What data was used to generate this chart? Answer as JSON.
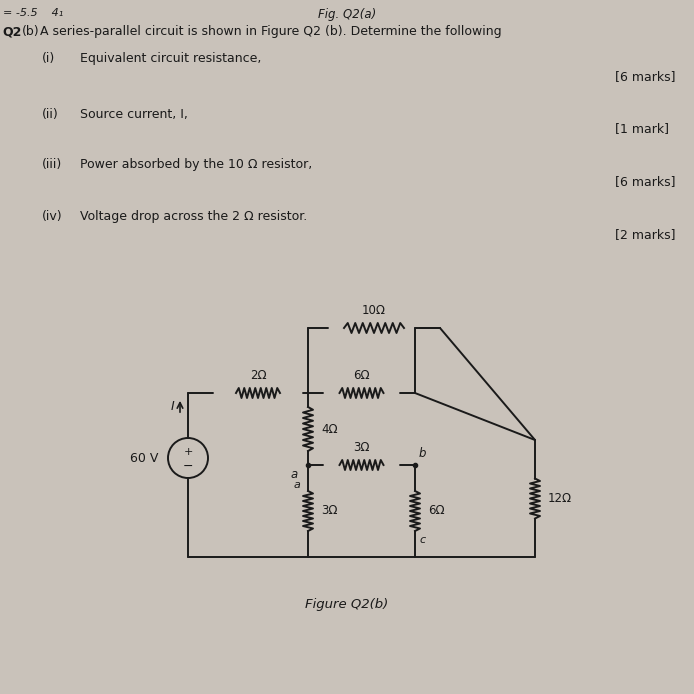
{
  "bg_color": "#c9c2ba",
  "text_color": "#1a1a1a",
  "title": "Fig. Q2(a)",
  "header_left": "= -5.5    4₁",
  "question_q": "Q2",
  "question_b": "(b)",
  "question_text": "A series-parallel circuit is shown in Figure Q2 (b). Determine the following",
  "items": [
    {
      "label": "(i)",
      "text": "Equivalent circuit resistance,",
      "marks": "[6 marks]"
    },
    {
      "label": "(ii)",
      "text": "Source current, I,",
      "marks": "[1 mark]"
    },
    {
      "label": "(iii)",
      "text": "Power absorbed by the 10 Ω resistor,",
      "marks": "[6 marks]"
    },
    {
      "label": "(iv)",
      "text": "Voltage drop across the 2 Ω resistor.",
      "marks": "[2 marks]"
    }
  ],
  "fig_caption": "Figure Q2(b)",
  "source_voltage": "60 V",
  "source_current_label": "I",
  "R1": "2Ω",
  "R2": "6Ω",
  "R3": "10Ω",
  "R4": "4Ω",
  "R5": "3Ω",
  "R6": "3Ω",
  "R7": "6Ω",
  "R8": "12Ω",
  "node_a": "a",
  "node_b": "b",
  "node_c": "c"
}
